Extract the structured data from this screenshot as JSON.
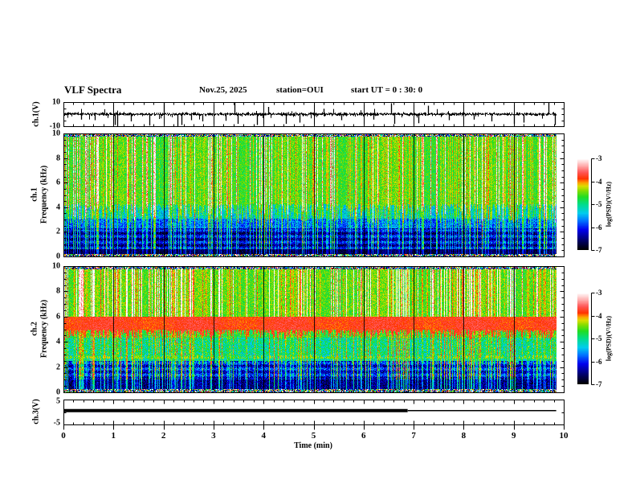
{
  "header": {
    "title": "VLF Spectra",
    "date": "Nov.25, 2025",
    "station": "station=OUI",
    "start_ut": "start UT =  0 : 30: 0"
  },
  "x_axis": {
    "label": "Time (min)",
    "min": 0,
    "max": 10,
    "tick_labels": [
      "0",
      "1",
      "2",
      "3",
      "4",
      "5",
      "6",
      "7",
      "8",
      "9",
      "10"
    ],
    "minor_step": 0.2
  },
  "wave_panel": {
    "ylabel": "ch.1(V)",
    "ymin": -10,
    "ymax": 10,
    "tick_labels": [
      "10",
      "-10"
    ]
  },
  "spec1_panel": {
    "ylabel_line1": "ch.1",
    "ylabel_line2": "Frequency (kHz)",
    "ymin": 0,
    "ymax": 10,
    "tick_values": [
      0,
      2,
      4,
      6,
      8,
      10
    ],
    "tick_labels": [
      "0",
      "2",
      "4",
      "6",
      "8",
      "10"
    ]
  },
  "spec2_panel": {
    "ylabel_line1": "ch.2",
    "ylabel_line2": "Frequency (kHz)",
    "ymin": 0,
    "ymax": 10,
    "tick_values": [
      0,
      2,
      4,
      6,
      8,
      10
    ],
    "tick_labels": [
      "0",
      "2",
      "4",
      "6",
      "8",
      "10"
    ]
  },
  "ch3_panel": {
    "ylabel": "ch.3(V)",
    "ymin": -5,
    "ymax": 5,
    "tick_labels": [
      "5",
      "-5"
    ]
  },
  "colorbar": {
    "label": "log(PSD)(V²/Hz)",
    "vmin": -7,
    "vmax": -3,
    "tick_labels": [
      "-3",
      "-4",
      "-5",
      "-6",
      "-7"
    ],
    "colormap_stops": [
      [
        0.0,
        "#000000"
      ],
      [
        0.1,
        "#000066"
      ],
      [
        0.22,
        "#0000ee"
      ],
      [
        0.32,
        "#0077ff"
      ],
      [
        0.4,
        "#00ccee"
      ],
      [
        0.5,
        "#00dd88"
      ],
      [
        0.58,
        "#22dd22"
      ],
      [
        0.65,
        "#88dd00"
      ],
      [
        0.7,
        "#dddd00"
      ],
      [
        0.74,
        "#ff9900"
      ],
      [
        0.78,
        "#ff3300"
      ],
      [
        0.85,
        "#ff5555"
      ],
      [
        0.92,
        "#ffaaaa"
      ],
      [
        1.0,
        "#ffffff"
      ]
    ]
  },
  "chart_data": [
    {
      "id": "ch1_waveform",
      "type": "line",
      "title": "ch.1(V) time series",
      "x_range_min": [
        0,
        10
      ],
      "y_range_volts": [
        -10,
        10
      ],
      "data_end_min": 9.85,
      "noise_sigma_volts": 1.1,
      "seed": 7,
      "spikes": [
        {
          "t": 0.35,
          "v": -4.5
        },
        {
          "t": 0.62,
          "v": -5
        },
        {
          "t": 1.02,
          "v": -9
        },
        {
          "t": 1.07,
          "v": -10
        },
        {
          "t": 1.35,
          "v": -6
        },
        {
          "t": 1.72,
          "v": -9.5
        },
        {
          "t": 2.0,
          "v": 9.5
        },
        {
          "t": 2.28,
          "v": -10
        },
        {
          "t": 2.36,
          "v": -9
        },
        {
          "t": 2.55,
          "v": -5
        },
        {
          "t": 2.78,
          "v": -6
        },
        {
          "t": 3.25,
          "v": -5.5
        },
        {
          "t": 3.42,
          "v": 9.5
        },
        {
          "t": 3.48,
          "v": -8
        },
        {
          "t": 3.87,
          "v": -9
        },
        {
          "t": 4.1,
          "v": 6
        },
        {
          "t": 4.45,
          "v": -8
        },
        {
          "t": 4.72,
          "v": -7
        },
        {
          "t": 5.2,
          "v": 4.5
        },
        {
          "t": 5.55,
          "v": -5
        },
        {
          "t": 6.2,
          "v": -4.5
        },
        {
          "t": 6.55,
          "v": 9
        },
        {
          "t": 6.62,
          "v": -8
        },
        {
          "t": 7.1,
          "v": -7.5
        },
        {
          "t": 7.28,
          "v": 7
        },
        {
          "t": 7.7,
          "v": -5
        },
        {
          "t": 8.2,
          "v": -4.5
        },
        {
          "t": 8.55,
          "v": -6
        },
        {
          "t": 9.0,
          "v": -8
        },
        {
          "t": 9.2,
          "v": -7
        },
        {
          "t": 9.7,
          "v": 9.5
        },
        {
          "t": 9.82,
          "v": -9
        }
      ]
    },
    {
      "id": "ch1_spectrogram",
      "type": "heatmap",
      "title": "ch.1 VLF spectrogram",
      "x_range_min": [
        0,
        10
      ],
      "y_range_khz": [
        0,
        10
      ],
      "value_scale": "log(PSD)(V²/Hz)",
      "value_range": [
        -7,
        -3
      ],
      "data_end_min": 9.85,
      "minute_gridlines": true,
      "seed": 42,
      "streak_prob": 0.32,
      "bands": [
        {
          "f0": 0.0,
          "f1": 0.25,
          "speckle": true
        },
        {
          "f0": 0.25,
          "f1": 0.6,
          "base": -6.75,
          "noise": 0.2,
          "streak_gain": 0.8
        },
        {
          "f0": 0.6,
          "f1": 2.3,
          "base": -6.35,
          "noise": 0.4,
          "hstripes": 0.35,
          "streak_gain": 1.3
        },
        {
          "f0": 2.3,
          "f1": 3.1,
          "base": -5.8,
          "noise": 0.4,
          "streak_gain": 1.1
        },
        {
          "f0": 3.1,
          "f1": 4.3,
          "base": -5.35,
          "noise": 0.4,
          "streak_gain": 0.9
        },
        {
          "f0": 4.3,
          "f1": 9.8,
          "base": -4.62,
          "noise": 0.28,
          "streak_gain": 0.7,
          "red_streaks": true,
          "f0_jitter": 1.6
        },
        {
          "f0": 9.8,
          "f1": 10.0,
          "speckle": true
        }
      ]
    },
    {
      "id": "ch2_spectrogram",
      "type": "heatmap",
      "title": "ch.2 VLF spectrogram",
      "x_range_min": [
        0,
        10
      ],
      "y_range_khz": [
        0,
        10
      ],
      "value_scale": "log(PSD)(V²/Hz)",
      "value_range": [
        -7,
        -3
      ],
      "data_end_min": 9.85,
      "minute_gridlines": true,
      "seed": 1337,
      "streak_prob": 0.32,
      "bands": [
        {
          "f0": 0.0,
          "f1": 0.3,
          "speckle": true
        },
        {
          "f0": 0.3,
          "f1": 1.05,
          "base": -6.55,
          "noise": 0.35,
          "streak_gain": 1.2
        },
        {
          "f0": 1.05,
          "f1": 2.5,
          "base": -6.15,
          "noise": 0.45,
          "hstripes": 0.3,
          "streak_gain": 1.6
        },
        {
          "f0": 2.5,
          "f1": 2.72,
          "base": -5.15,
          "noise": 0.3,
          "streak_gain": 0.7
        },
        {
          "f0": 2.72,
          "f1": 2.95,
          "base": -4.35,
          "noise": 0.18
        },
        {
          "f0": 2.95,
          "f1": 4.35,
          "base": -5.05,
          "noise": 0.45,
          "streak_gain": 0.8,
          "f0_jitter": 0.8
        },
        {
          "f0": 4.35,
          "f1": 5.0,
          "base": -4.75,
          "noise": 0.4,
          "streak_gain": 0.7
        },
        {
          "f0": 5.0,
          "f1": 6.05,
          "base": -3.8,
          "noise": 0.18,
          "f0_jitter": 0.75
        },
        {
          "f0": 6.05,
          "f1": 9.8,
          "base": -4.55,
          "noise": 0.28,
          "streak_gain": 0.8,
          "red_streaks": true
        },
        {
          "f0": 9.8,
          "f1": 10.0,
          "speckle": true
        }
      ]
    },
    {
      "id": "ch3_level",
      "type": "line",
      "title": "ch.3(V) time series",
      "x_range_min": [
        0,
        10
      ],
      "y_range_volts": [
        -5,
        5
      ],
      "segments": [
        {
          "t0": 0.0,
          "t1": 6.88,
          "value": 0.6,
          "style": "thick"
        },
        {
          "t0": 6.88,
          "t1": 9.85,
          "value": 0.6,
          "style": "thin"
        }
      ]
    }
  ]
}
